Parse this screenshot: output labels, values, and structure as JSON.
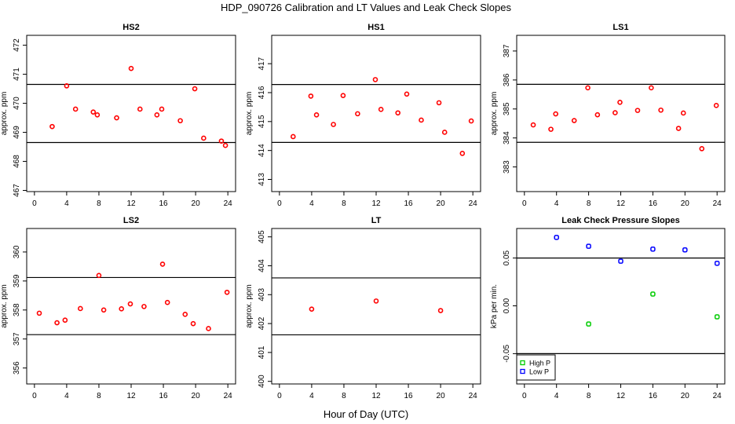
{
  "figure": {
    "title": "HDP_090726  Calibration and LT Values and Leak Check Slopes",
    "xlabel": "Hour of Day (UTC)"
  },
  "chart_data": [
    {
      "type": "scatter",
      "title": "HS2",
      "ylabel": "approx. ppm",
      "xlim": [
        -0.96,
        24.96
      ],
      "ylim": [
        466.96,
        472.34
      ],
      "xticks": [
        0,
        4,
        8,
        12,
        16,
        20,
        24
      ],
      "yticks": [
        467,
        468,
        469,
        470,
        471,
        472
      ],
      "hlines": [
        470.65,
        468.65
      ],
      "series": [
        {
          "name": "HS2",
          "color": "#ff0000",
          "marker": "circle",
          "x": [
            2.2,
            4.0,
            5.1,
            7.3,
            7.8,
            10.2,
            12.0,
            13.1,
            15.2,
            15.8,
            18.1,
            19.9,
            21.0,
            23.2,
            23.7
          ],
          "y": [
            469.2,
            470.6,
            469.8,
            469.7,
            469.6,
            469.5,
            471.2,
            469.8,
            469.6,
            469.8,
            469.4,
            470.5,
            468.8,
            468.7,
            468.55
          ]
        }
      ]
    },
    {
      "type": "scatter",
      "title": "HS1",
      "ylabel": "approx. ppm",
      "xlim": [
        -0.96,
        24.96
      ],
      "ylim": [
        412.58,
        417.98
      ],
      "xticks": [
        0,
        4,
        8,
        12,
        16,
        20,
        24
      ],
      "yticks": [
        413,
        414,
        415,
        416,
        417
      ],
      "hlines": [
        416.28,
        414.28
      ],
      "series": [
        {
          "name": "HS1",
          "color": "#ff0000",
          "marker": "circle",
          "x": [
            1.7,
            3.9,
            4.6,
            6.7,
            7.9,
            9.7,
            11.9,
            12.6,
            14.7,
            15.8,
            17.6,
            19.8,
            20.5,
            22.7,
            23.8
          ],
          "y": [
            414.48,
            415.88,
            415.23,
            414.9,
            415.9,
            415.27,
            416.45,
            415.42,
            415.3,
            415.95,
            415.05,
            415.65,
            414.63,
            413.9,
            415.02
          ]
        }
      ]
    },
    {
      "type": "scatter",
      "title": "LS1",
      "ylabel": "approx. ppm",
      "xlim": [
        -0.96,
        24.96
      ],
      "ylim": [
        382.15,
        387.54
      ],
      "xticks": [
        0,
        4,
        8,
        12,
        16,
        20,
        24
      ],
      "yticks": [
        383,
        384,
        385,
        386,
        387
      ],
      "hlines": [
        385.85,
        383.85
      ],
      "series": [
        {
          "name": "LS1",
          "color": "#ff0000",
          "marker": "circle",
          "x": [
            1.1,
            3.3,
            3.9,
            6.2,
            7.9,
            9.1,
            11.3,
            11.9,
            14.1,
            15.8,
            17.0,
            19.2,
            19.8,
            22.1,
            23.9
          ],
          "y": [
            384.45,
            384.3,
            384.83,
            384.6,
            385.73,
            384.8,
            384.87,
            385.23,
            384.95,
            385.73,
            384.96,
            384.33,
            384.86,
            383.63,
            385.12
          ]
        }
      ]
    },
    {
      "type": "scatter",
      "title": "LS2",
      "ylabel": "approx. ppm",
      "xlim": [
        -0.96,
        24.96
      ],
      "ylim": [
        355.45,
        360.81
      ],
      "xticks": [
        0,
        4,
        8,
        12,
        16,
        20,
        24
      ],
      "yticks": [
        356,
        357,
        358,
        359,
        360
      ],
      "hlines": [
        359.12,
        357.15
      ],
      "series": [
        {
          "name": "LS2",
          "color": "#ff0000",
          "marker": "circle",
          "x": [
            0.6,
            2.8,
            3.8,
            5.7,
            8.0,
            8.6,
            10.8,
            11.9,
            13.6,
            15.9,
            16.5,
            18.7,
            19.7,
            21.6,
            23.9
          ],
          "y": [
            357.89,
            357.56,
            357.65,
            358.05,
            359.19,
            358.0,
            358.04,
            358.21,
            358.12,
            359.58,
            358.26,
            357.85,
            357.53,
            357.36,
            358.61
          ]
        }
      ]
    },
    {
      "type": "scatter",
      "title": "LT",
      "ylabel": "approx. ppm",
      "xlim": [
        -0.96,
        24.96
      ],
      "ylim": [
        399.91,
        405.29
      ],
      "xticks": [
        0,
        4,
        8,
        12,
        16,
        20,
        24
      ],
      "yticks": [
        400,
        401,
        402,
        403,
        404,
        405
      ],
      "hlines": [
        403.58,
        401.61
      ],
      "series": [
        {
          "name": "LT",
          "color": "#ff0000",
          "marker": "circle",
          "x": [
            4,
            12,
            20
          ],
          "y": [
            402.5,
            402.78,
            402.45
          ]
        }
      ]
    },
    {
      "type": "scatter",
      "title": "Leak Check Pressure Slopes",
      "ylabel": "kPa per min.",
      "xlim": [
        -0.96,
        24.96
      ],
      "ylim": [
        -0.0817,
        0.0809
      ],
      "xticks": [
        0,
        4,
        8,
        12,
        16,
        20,
        24
      ],
      "yticks": [
        -0.05,
        0.0,
        0.05
      ],
      "ytick_labels": [
        "-0.05",
        "0.00",
        "0.05"
      ],
      "hlines": [
        0.05,
        -0.05
      ],
      "legend": {
        "placement": "bottom-left",
        "entries": [
          "High P",
          "Low P"
        ]
      },
      "series": [
        {
          "name": "High P",
          "color": "#00cc00",
          "marker": "square",
          "x": [
            8,
            16,
            24
          ],
          "y": [
            -0.019,
            0.0123,
            -0.0115
          ]
        },
        {
          "name": "Low P",
          "color": "#0000ff",
          "marker": "square",
          "x": [
            4,
            8,
            12,
            16,
            20,
            24
          ],
          "y": [
            0.0716,
            0.0623,
            0.0467,
            0.0593,
            0.0585,
            0.0445
          ]
        }
      ]
    }
  ]
}
